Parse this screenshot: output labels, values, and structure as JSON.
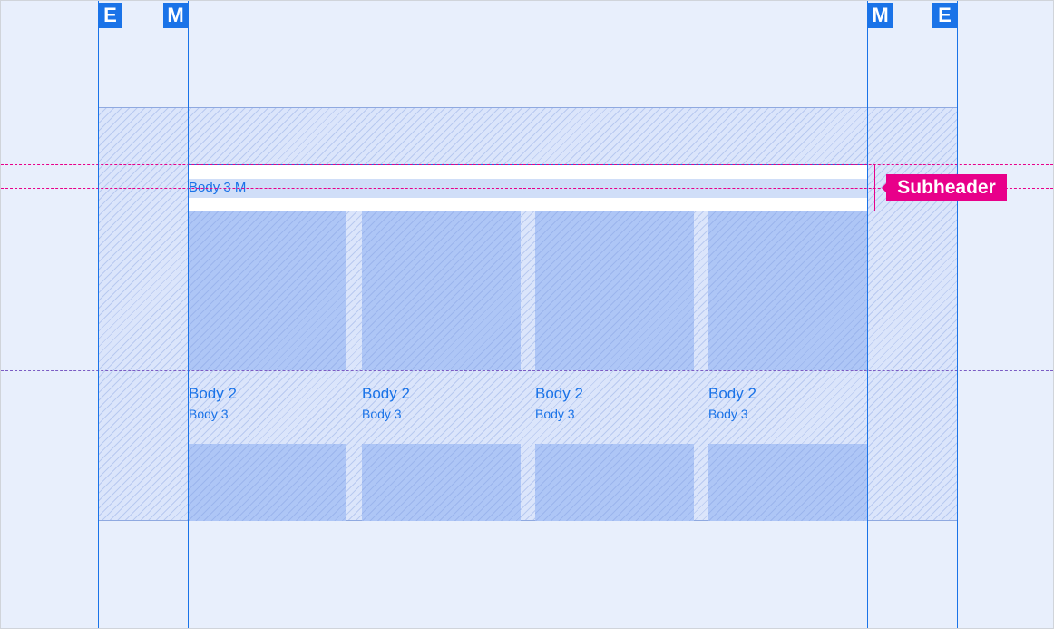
{
  "markers": {
    "edge": "E",
    "margin": "M"
  },
  "subheader": {
    "text": "Body 3 M",
    "badge": "Subheader"
  },
  "tiles": [
    {
      "title": "Body 2",
      "subtitle": "Body 3"
    },
    {
      "title": "Body 2",
      "subtitle": "Body 3"
    },
    {
      "title": "Body 2",
      "subtitle": "Body 3"
    },
    {
      "title": "Body 2",
      "subtitle": "Body 3"
    }
  ],
  "colors": {
    "accent": "#1a73e8",
    "highlight": "#e8008a",
    "background": "#e8effc",
    "tile": "#aec6f6"
  }
}
